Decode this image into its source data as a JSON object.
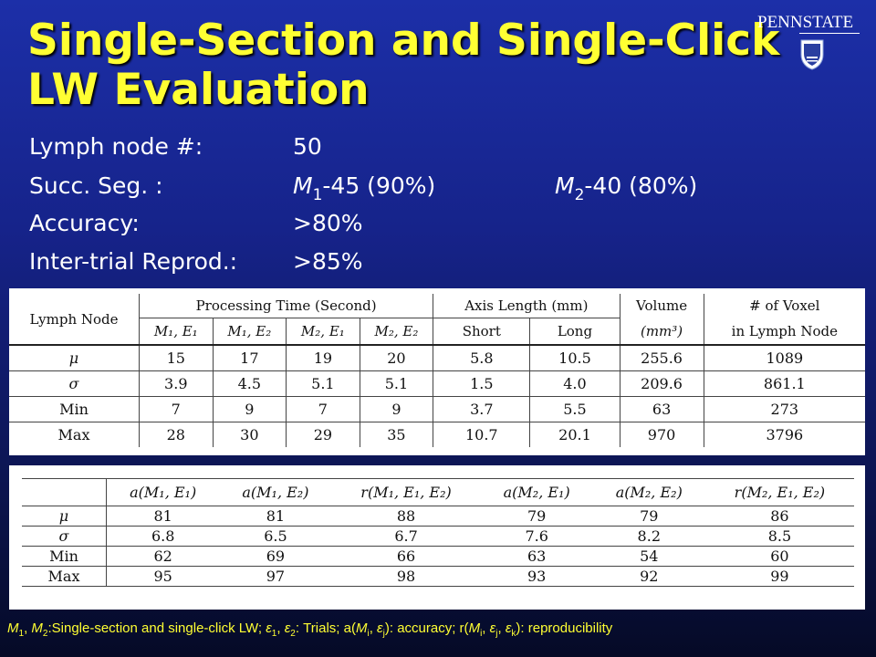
{
  "slide": {
    "title": "Single-Section and Single-Click LW Evaluation",
    "logo_text": "PENNSTATE"
  },
  "stats": {
    "lymph_label": "Lymph node #:",
    "lymph_value": "50",
    "seg_label": "Succ. Seg. :",
    "seg_m": "M",
    "seg_m1_sub": "1",
    "seg_m1_rest": "-45 (90%)",
    "seg_m2_sub": "2",
    "seg_m2_rest": "-40 (80%)",
    "acc_label": "Accuracy:",
    "acc_value": ">80%",
    "repro_label": "Inter-trial Reprod.:",
    "repro_value": ">85%"
  },
  "table1": {
    "row_header": "Lymph Node",
    "group_headers": [
      "Processing Time (Second)",
      "Axis Length (mm)",
      "Volume",
      "# of Voxel"
    ],
    "group_subtext": [
      "",
      "",
      "(mm³)",
      "in Lymph Node"
    ],
    "sub_headers": [
      "M₁, E₁",
      "M₁, E₂",
      "M₂, E₁",
      "M₂, E₂",
      "Short",
      "Long"
    ],
    "rows": [
      {
        "label": "μ",
        "values": [
          "15",
          "17",
          "19",
          "20",
          "5.8",
          "10.5",
          "255.6",
          "1089"
        ]
      },
      {
        "label": "σ",
        "values": [
          "3.9",
          "4.5",
          "5.1",
          "5.1",
          "1.5",
          "4.0",
          "209.6",
          "861.1"
        ]
      },
      {
        "label": "Min",
        "values": [
          "7",
          "9",
          "7",
          "9",
          "3.7",
          "5.5",
          "63",
          "273"
        ]
      },
      {
        "label": "Max",
        "values": [
          "28",
          "30",
          "29",
          "35",
          "10.7",
          "20.1",
          "970",
          "3796"
        ]
      }
    ]
  },
  "table2": {
    "headers": [
      "a(M₁, E₁)",
      "a(M₁, E₂)",
      "r(M₁, E₁, E₂)",
      "a(M₂, E₁)",
      "a(M₂, E₂)",
      "r(M₂, E₁, E₂)"
    ],
    "rows": [
      {
        "label": "μ",
        "values": [
          "81",
          "81",
          "88",
          "79",
          "79",
          "86"
        ]
      },
      {
        "label": "σ",
        "values": [
          "6.8",
          "6.5",
          "6.7",
          "7.6",
          "8.2",
          "8.5"
        ]
      },
      {
        "label": "Min",
        "values": [
          "62",
          "69",
          "66",
          "63",
          "54",
          "60"
        ]
      },
      {
        "label": "Max",
        "values": [
          "95",
          "97",
          "98",
          "93",
          "92",
          "99"
        ]
      }
    ]
  },
  "footnote": {
    "m1": "M",
    "m1_sub": "1",
    "sep1": ", ",
    "m2": "M",
    "m2_sub": "2",
    "desc1": ":Single-section and single-click LW; ",
    "e1": "ε",
    "e1_sub": "1",
    "sep2": ", ",
    "e2": "ε",
    "e2_sub": "2",
    "desc2": ": Trials; a(",
    "mi": "M",
    "mi_sub": "i",
    "sep3": ", ",
    "ej": "ε",
    "ej_sub": "j",
    "desc3": "): accuracy; r(",
    "mi2": "M",
    "mi2_sub": "i",
    "sep4": ", ",
    "ej2": "ε",
    "ej2_sub": "j",
    "sep5": ", ",
    "ek": "ε",
    "ek_sub": "k",
    "desc4": "): reproducibility"
  }
}
